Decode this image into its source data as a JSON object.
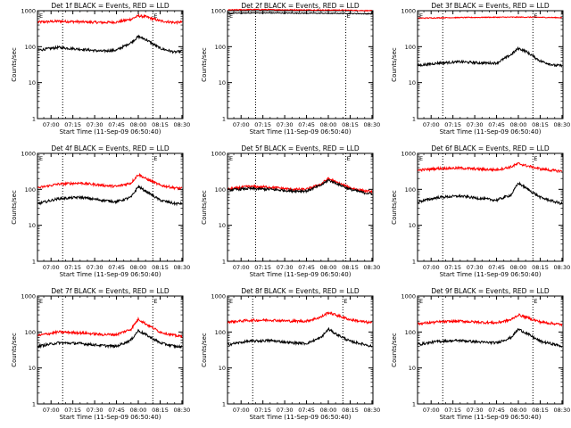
{
  "chart_data": [
    {
      "type": "line",
      "title": "Det 1f BLACK = Events, RED = LLD",
      "xlabel": "Start Time (11-Sep-09 06:50:40)",
      "ylabel": "Counts/sec",
      "yscale": "log",
      "ylim": [
        1,
        1000
      ],
      "x_ticks": [
        "07:00",
        "07:15",
        "07:30",
        "07:45",
        "08:00",
        "08:15",
        "08:30"
      ],
      "y_ticks": [
        "1",
        "10",
        "100",
        "1000"
      ],
      "xlim": [
        "06:50:40",
        "08:30:40"
      ],
      "vlines": [
        "07:08",
        "08:10"
      ],
      "marker_label": "E",
      "series": [
        {
          "color": "#000000",
          "profile": "events",
          "x": [
            "06:51",
            "07:05",
            "07:20",
            "07:35",
            "07:45",
            "07:55",
            "08:00",
            "08:05",
            "08:15",
            "08:25",
            "08:30"
          ],
          "values": [
            80,
            95,
            85,
            75,
            80,
            130,
            190,
            160,
            90,
            70,
            75
          ]
        },
        {
          "color": "#ff0000",
          "profile": "lld",
          "x": [
            "06:51",
            "07:05",
            "07:20",
            "07:35",
            "07:45",
            "07:55",
            "08:00",
            "08:05",
            "08:15",
            "08:25",
            "08:30"
          ],
          "values": [
            480,
            510,
            490,
            470,
            480,
            580,
            720,
            680,
            520,
            470,
            480
          ]
        }
      ]
    },
    {
      "type": "line",
      "title": "Det 2f BLACK = Events, RED = LLD",
      "xlabel": "Start Time (11-Sep-09 06:50:40)",
      "ylabel": "Counts/sec",
      "yscale": "log",
      "ylim": [
        1,
        1000
      ],
      "x_ticks": [
        "07:00",
        "07:15",
        "07:30",
        "07:45",
        "08:00",
        "08:15",
        "08:30"
      ],
      "y_ticks": [
        "1",
        "10",
        "100",
        "1000"
      ],
      "xlim": [
        "06:50:40",
        "08:30:40"
      ],
      "vlines": [
        "07:10",
        "08:12"
      ],
      "marker_label": "E",
      "series": [
        {
          "color": "#000000",
          "profile": "flat",
          "x": [
            "06:51",
            "07:10",
            "07:30",
            "07:50",
            "08:10",
            "08:20",
            "08:30"
          ],
          "values": [
            850,
            870,
            860,
            850,
            840,
            830,
            820
          ]
        },
        {
          "color": "#ff0000",
          "profile": "flat",
          "x": [
            "06:51",
            "07:10",
            "07:30",
            "07:50",
            "08:10",
            "08:20",
            "08:30"
          ],
          "values": [
            1050,
            1080,
            1060,
            1050,
            1040,
            1020,
            1000
          ]
        }
      ]
    },
    {
      "type": "line",
      "title": "Det 3f BLACK = Events, RED = LLD",
      "xlabel": "Start Time (11-Sep-09 06:50:40)",
      "ylabel": "Counts/sec",
      "yscale": "log",
      "ylim": [
        1,
        1000
      ],
      "x_ticks": [
        "07:00",
        "07:15",
        "07:30",
        "07:45",
        "08:00",
        "08:15",
        "08:30"
      ],
      "y_ticks": [
        "1",
        "10",
        "100",
        "1000"
      ],
      "xlim": [
        "06:50:40",
        "08:30:40"
      ],
      "vlines": [
        "07:08",
        "08:10"
      ],
      "marker_label": "E",
      "series": [
        {
          "color": "#000000",
          "profile": "events",
          "x": [
            "06:51",
            "07:05",
            "07:20",
            "07:35",
            "07:45",
            "07:55",
            "08:00",
            "08:05",
            "08:15",
            "08:25",
            "08:30"
          ],
          "values": [
            30,
            35,
            38,
            35,
            35,
            60,
            90,
            75,
            40,
            30,
            30
          ]
        },
        {
          "color": "#ff0000",
          "profile": "flat",
          "x": [
            "06:51",
            "07:10",
            "07:30",
            "07:50",
            "08:10",
            "08:20",
            "08:30"
          ],
          "values": [
            620,
            640,
            650,
            660,
            660,
            650,
            640
          ]
        }
      ]
    },
    {
      "type": "line",
      "title": "Det 4f BLACK = Events, RED = LLD",
      "xlabel": "Start Time (11-Sep-09 06:50:40)",
      "ylabel": "Counts/sec",
      "yscale": "log",
      "ylim": [
        1,
        1000
      ],
      "x_ticks": [
        "07:00",
        "07:15",
        "07:30",
        "07:45",
        "08:00",
        "08:15",
        "08:30"
      ],
      "y_ticks": [
        "1",
        "10",
        "100",
        "1000"
      ],
      "xlim": [
        "06:50:40",
        "08:30:40"
      ],
      "vlines": [
        "07:08",
        "08:10"
      ],
      "marker_label": "E",
      "series": [
        {
          "color": "#000000",
          "profile": "events",
          "x": [
            "06:51",
            "07:05",
            "07:20",
            "07:35",
            "07:45",
            "07:55",
            "08:00",
            "08:05",
            "08:15",
            "08:25",
            "08:30"
          ],
          "values": [
            40,
            55,
            60,
            50,
            45,
            60,
            120,
            90,
            50,
            40,
            40
          ]
        },
        {
          "color": "#ff0000",
          "profile": "lld",
          "x": [
            "06:51",
            "07:05",
            "07:20",
            "07:35",
            "07:45",
            "07:55",
            "08:00",
            "08:05",
            "08:15",
            "08:25",
            "08:30"
          ],
          "values": [
            110,
            140,
            150,
            130,
            120,
            150,
            260,
            200,
            130,
            110,
            105
          ]
        }
      ]
    },
    {
      "type": "line",
      "title": "Det 5f BLACK = Events, RED = LLD",
      "xlabel": "Start Time (11-Sep-09 06:50:40)",
      "ylabel": "Counts/sec",
      "yscale": "log",
      "ylim": [
        1,
        1000
      ],
      "x_ticks": [
        "07:00",
        "07:15",
        "07:30",
        "07:45",
        "08:00",
        "08:15",
        "08:30"
      ],
      "y_ticks": [
        "1",
        "10",
        "100",
        "1000"
      ],
      "xlim": [
        "06:50:40",
        "08:30:40"
      ],
      "vlines": [
        "07:10",
        "08:12"
      ],
      "marker_label": "E",
      "series": [
        {
          "color": "#000000",
          "profile": "events",
          "x": [
            "06:51",
            "07:05",
            "07:20",
            "07:35",
            "07:45",
            "07:55",
            "08:00",
            "08:05",
            "08:15",
            "08:25",
            "08:30"
          ],
          "values": [
            95,
            105,
            100,
            90,
            90,
            130,
            180,
            150,
            100,
            80,
            75
          ]
        },
        {
          "color": "#ff0000",
          "profile": "lld",
          "x": [
            "06:51",
            "07:05",
            "07:20",
            "07:35",
            "07:45",
            "07:55",
            "08:00",
            "08:05",
            "08:15",
            "08:25",
            "08:30"
          ],
          "values": [
            100,
            120,
            115,
            100,
            100,
            140,
            200,
            160,
            110,
            90,
            85
          ]
        }
      ]
    },
    {
      "type": "line",
      "title": "Det 6f BLACK = Events, RED = LLD",
      "xlabel": "Start Time (11-Sep-09 06:50:40)",
      "ylabel": "Counts/sec",
      "yscale": "log",
      "ylim": [
        1,
        1000
      ],
      "x_ticks": [
        "07:00",
        "07:15",
        "07:30",
        "07:45",
        "08:00",
        "08:15",
        "08:30"
      ],
      "y_ticks": [
        "1",
        "10",
        "100",
        "1000"
      ],
      "xlim": [
        "06:50:40",
        "08:30:40"
      ],
      "vlines": [
        "07:08",
        "08:10"
      ],
      "marker_label": "E",
      "series": [
        {
          "color": "#000000",
          "profile": "events",
          "x": [
            "06:51",
            "07:05",
            "07:20",
            "07:35",
            "07:45",
            "07:55",
            "08:00",
            "08:05",
            "08:15",
            "08:25",
            "08:30"
          ],
          "values": [
            45,
            60,
            65,
            55,
            50,
            70,
            150,
            110,
            60,
            45,
            40
          ]
        },
        {
          "color": "#ff0000",
          "profile": "lld",
          "x": [
            "06:51",
            "07:05",
            "07:20",
            "07:35",
            "07:45",
            "07:55",
            "08:00",
            "08:05",
            "08:15",
            "08:25",
            "08:30"
          ],
          "values": [
            340,
            380,
            390,
            360,
            350,
            420,
            520,
            460,
            370,
            330,
            320
          ]
        }
      ]
    },
    {
      "type": "line",
      "title": "Det 7f BLACK = Events, RED = LLD",
      "xlabel": "Start Time (11-Sep-09 06:50:40)",
      "ylabel": "Counts/sec",
      "yscale": "log",
      "ylim": [
        1,
        1000
      ],
      "x_ticks": [
        "07:00",
        "07:15",
        "07:30",
        "07:45",
        "08:00",
        "08:15",
        "08:30"
      ],
      "y_ticks": [
        "1",
        "10",
        "100",
        "1000"
      ],
      "xlim": [
        "06:50:40",
        "08:30:40"
      ],
      "vlines": [
        "07:08",
        "08:10"
      ],
      "marker_label": "E",
      "series": [
        {
          "color": "#000000",
          "profile": "events",
          "x": [
            "06:51",
            "07:05",
            "07:20",
            "07:35",
            "07:45",
            "07:55",
            "08:00",
            "08:05",
            "08:15",
            "08:25",
            "08:30"
          ],
          "values": [
            40,
            50,
            48,
            42,
            40,
            60,
            110,
            85,
            50,
            40,
            38
          ]
        },
        {
          "color": "#ff0000",
          "profile": "lld",
          "x": [
            "06:51",
            "07:05",
            "07:20",
            "07:35",
            "07:45",
            "07:55",
            "08:00",
            "08:05",
            "08:15",
            "08:25",
            "08:30"
          ],
          "values": [
            80,
            100,
            95,
            85,
            85,
            120,
            230,
            170,
            100,
            80,
            75
          ]
        }
      ]
    },
    {
      "type": "line",
      "title": "Det 8f BLACK = Events, RED = LLD",
      "xlabel": "Start Time (11-Sep-09 06:50:40)",
      "ylabel": "Counts/sec",
      "yscale": "log",
      "ylim": [
        1,
        1000
      ],
      "x_ticks": [
        "07:00",
        "07:15",
        "07:30",
        "07:45",
        "08:00",
        "08:15",
        "08:30"
      ],
      "y_ticks": [
        "1",
        "10",
        "100",
        "1000"
      ],
      "xlim": [
        "06:50:40",
        "08:30:40"
      ],
      "vlines": [
        "07:08",
        "08:10"
      ],
      "marker_label": "E",
      "series": [
        {
          "color": "#000000",
          "profile": "events",
          "x": [
            "06:51",
            "07:05",
            "07:20",
            "07:35",
            "07:45",
            "07:55",
            "08:00",
            "08:05",
            "08:15",
            "08:25",
            "08:30"
          ],
          "values": [
            45,
            55,
            58,
            50,
            48,
            70,
            120,
            90,
            55,
            45,
            40
          ]
        },
        {
          "color": "#ff0000",
          "profile": "lld",
          "x": [
            "06:51",
            "07:05",
            "07:20",
            "07:35",
            "07:45",
            "07:55",
            "08:00",
            "08:05",
            "08:15",
            "08:25",
            "08:30"
          ],
          "values": [
            190,
            210,
            215,
            200,
            200,
            260,
            350,
            300,
            220,
            190,
            180
          ]
        }
      ]
    },
    {
      "type": "line",
      "title": "Det 9f BLACK = Events, RED = LLD",
      "xlabel": "Start Time (11-Sep-09 06:50:40)",
      "ylabel": "Counts/sec",
      "yscale": "log",
      "ylim": [
        1,
        1000
      ],
      "x_ticks": [
        "07:00",
        "07:15",
        "07:30",
        "07:45",
        "08:00",
        "08:15",
        "08:30"
      ],
      "y_ticks": [
        "1",
        "10",
        "100",
        "1000"
      ],
      "xlim": [
        "06:50:40",
        "08:30:40"
      ],
      "vlines": [
        "07:08",
        "08:10"
      ],
      "marker_label": "E",
      "series": [
        {
          "color": "#000000",
          "profile": "events",
          "x": [
            "06:51",
            "07:05",
            "07:20",
            "07:35",
            "07:45",
            "07:55",
            "08:00",
            "08:05",
            "08:15",
            "08:25",
            "08:30"
          ],
          "values": [
            45,
            55,
            58,
            52,
            50,
            70,
            120,
            95,
            55,
            45,
            40
          ]
        },
        {
          "color": "#ff0000",
          "profile": "lld",
          "x": [
            "06:51",
            "07:05",
            "07:20",
            "07:35",
            "07:45",
            "07:55",
            "08:00",
            "08:05",
            "08:15",
            "08:25",
            "08:30"
          ],
          "values": [
            170,
            190,
            200,
            185,
            180,
            220,
            300,
            260,
            190,
            170,
            160
          ]
        }
      ]
    }
  ]
}
